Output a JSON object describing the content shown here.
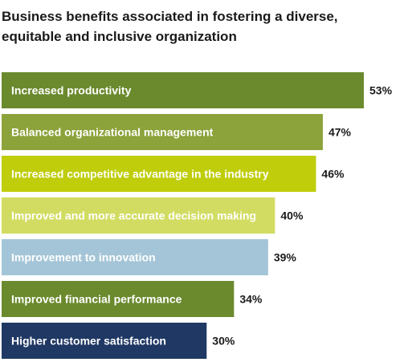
{
  "chart_data": {
    "type": "bar",
    "orientation": "horizontal",
    "title": "Business benefits associated in fostering a diverse, equitable and inclusive organization",
    "categories": [
      "Increased productivity",
      "Balanced organizational management",
      "Increased competitive advantage in the industry",
      "Improved and more accurate decision making",
      "Improvement to innovation",
      "Improved financial performance",
      "Higher customer satisfaction"
    ],
    "values": [
      53,
      47,
      46,
      40,
      39,
      34,
      30
    ],
    "value_labels": [
      "53%",
      "47%",
      "46%",
      "40%",
      "39%",
      "34%",
      "30%"
    ],
    "bar_colors": [
      "#6b8a2e",
      "#8ca23a",
      "#bfcd0a",
      "#d2dc62",
      "#a4c5d7",
      "#6b8a2e",
      "#1f3864"
    ],
    "xlim": [
      0,
      53
    ],
    "grid": false,
    "legend": "none"
  }
}
